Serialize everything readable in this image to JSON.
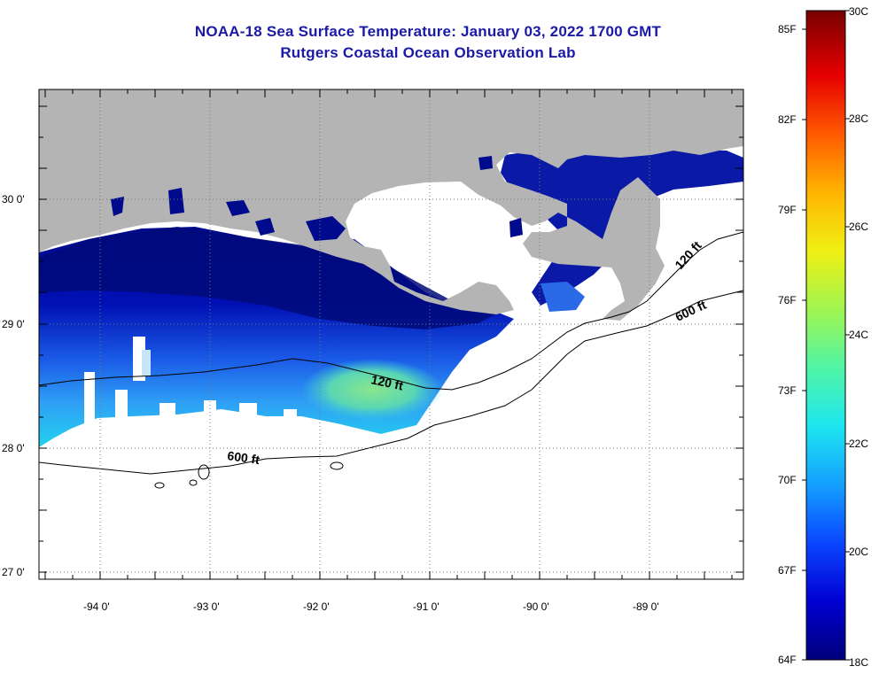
{
  "title_line1": "NOAA-18 Sea Surface Temperature:  January 03, 2022 1700 GMT",
  "title_line2": "Rutgers Coastal Ocean Observation Lab",
  "map": {
    "lon_labels": [
      "-94 0'",
      "-93 0'",
      "-92 0'",
      "-91 0'",
      "-90 0'",
      "-89 0'"
    ],
    "lat_labels": [
      "30 0'",
      "29 0'",
      "28 0'",
      "27 0'"
    ],
    "contours": [
      {
        "label": "120 ft",
        "text": "120 ft"
      },
      {
        "label": "600 ft",
        "text": "600 ft"
      },
      {
        "label": "120 ft (east)",
        "text": "120 ft"
      },
      {
        "label": "600 ft (east)",
        "text": "600 ft"
      }
    ],
    "colors": {
      "land": "#b4b4b4",
      "ocean_no_data": "#ffffff",
      "grid": "#7a7a7a"
    }
  },
  "colorbar": {
    "fahrenheit": [
      "85F",
      "82F",
      "79F",
      "76F",
      "73F",
      "70F",
      "67F",
      "64F"
    ],
    "celsius": [
      "30C",
      "28C",
      "26C",
      "24C",
      "22C",
      "20C",
      "18C"
    ],
    "min_c": 18,
    "max_c": 30,
    "colors": [
      "#00007a",
      "#0000d2",
      "#0a46ff",
      "#14a0ff",
      "#1ee6f0",
      "#50f5a5",
      "#a0f550",
      "#f0f014",
      "#ffb400",
      "#ff5a00",
      "#e60000",
      "#780000"
    ]
  }
}
